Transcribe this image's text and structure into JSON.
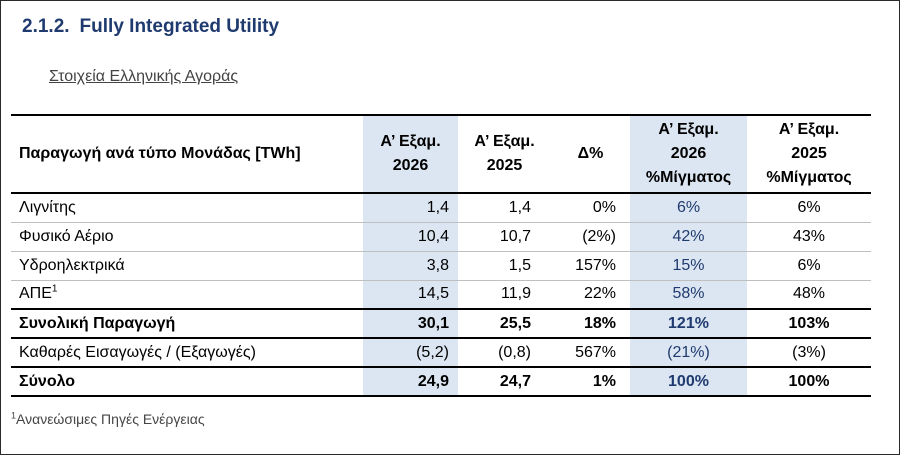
{
  "section": {
    "number": "2.1.2.",
    "title": "Fully Integrated Utility"
  },
  "subheading": "Στοιχεία Ελληνικής Αγοράς",
  "table": {
    "header": {
      "label": "Παραγωγή ανά τύπο Μονάδας [TWh]",
      "col1_line1": "Α’ Εξαμ.",
      "col1_line2": "2026",
      "col2_line1": "Α’ Εξαμ.",
      "col2_line2": "2025",
      "col3": "Δ%",
      "col4_line1": "Α’ Εξαμ.",
      "col4_line2": "2026",
      "col4_line3": "%Μίγματος",
      "col5_line1": "Α’ Εξαμ.",
      "col5_line2": "2025",
      "col5_line3": "%Μίγματος"
    },
    "rows": [
      {
        "label": "Λιγνίτης",
        "sup": "",
        "h1_2026": "1,4",
        "h1_2025": "1,4",
        "delta": "0%",
        "mix_2026": "6%",
        "mix_2025": "6%"
      },
      {
        "label": "Φυσικό Αέριο",
        "sup": "",
        "h1_2026": "10,4",
        "h1_2025": "10,7",
        "delta": "(2%)",
        "mix_2026": "42%",
        "mix_2025": "43%"
      },
      {
        "label": "Υδροηλεκτρικά",
        "sup": "",
        "h1_2026": "3,8",
        "h1_2025": "1,5",
        "delta": "157%",
        "mix_2026": "15%",
        "mix_2025": "6%"
      },
      {
        "label": "ΑΠΕ",
        "sup": "1",
        "h1_2026": "14,5",
        "h1_2025": "11,9",
        "delta": "22%",
        "mix_2026": "58%",
        "mix_2025": "48%"
      },
      {
        "label": "Συνολική Παραγωγή",
        "sup": "",
        "h1_2026": "30,1",
        "h1_2025": "25,5",
        "delta": "18%",
        "mix_2026": "121%",
        "mix_2025": "103%"
      },
      {
        "label": "Καθαρές Εισαγωγές / (Εξαγωγές)",
        "sup": "",
        "h1_2026": "(5,2)",
        "h1_2025": "(0,8)",
        "delta": "567%",
        "mix_2026": "(21%)",
        "mix_2025": "(3%)"
      },
      {
        "label": "Σύνολο",
        "sup": "",
        "h1_2026": "24,9",
        "h1_2025": "24,7",
        "delta": "1%",
        "mix_2026": "100%",
        "mix_2025": "100%"
      }
    ]
  },
  "footnote": {
    "sup": "1",
    "text": "Ανανεώσιμες Πηγές Ενέργειας"
  },
  "colors": {
    "heading": "#1f3a6e",
    "shade": "#dce6f2"
  }
}
